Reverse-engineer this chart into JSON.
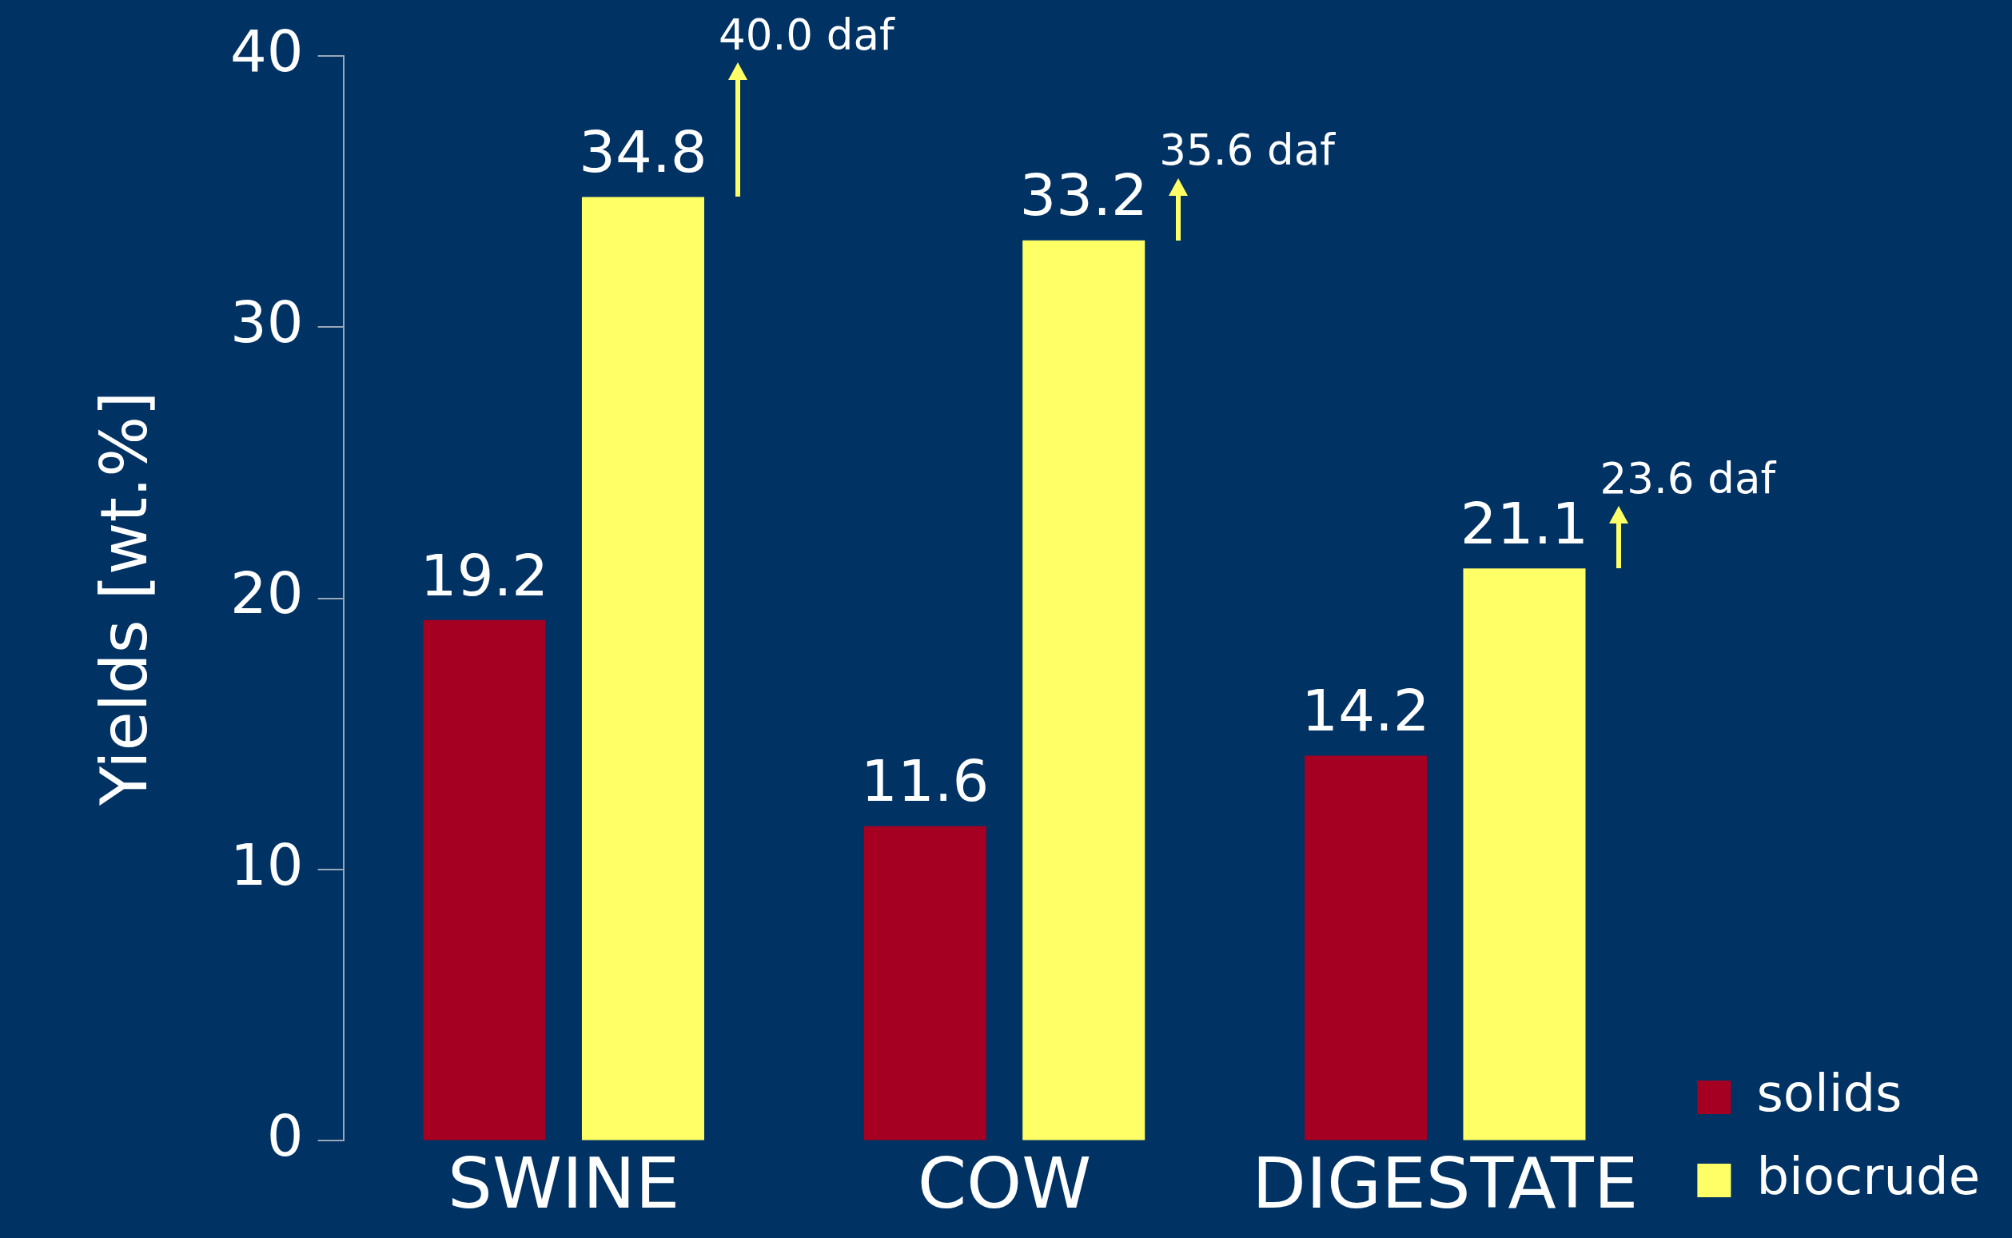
{
  "chart_data": {
    "type": "bar",
    "ylabel": "Yields [wt.%]",
    "categories": [
      "SWINE",
      "COW",
      "DIGESTATE"
    ],
    "series": [
      {
        "name": "solids",
        "color": "#a50021",
        "values": [
          19.2,
          11.6,
          14.2
        ]
      },
      {
        "name": "biocrude",
        "color": "#ffff66",
        "values": [
          34.8,
          33.2,
          21.1
        ]
      }
    ],
    "ylim": [
      0,
      40
    ],
    "yticks": [
      0,
      10,
      20,
      30,
      40
    ],
    "grid": false,
    "legend": "bottom right",
    "data_labels": true,
    "annotations": [
      "40.0 daf",
      "35.6 daf",
      "23.6 daf"
    ]
  }
}
